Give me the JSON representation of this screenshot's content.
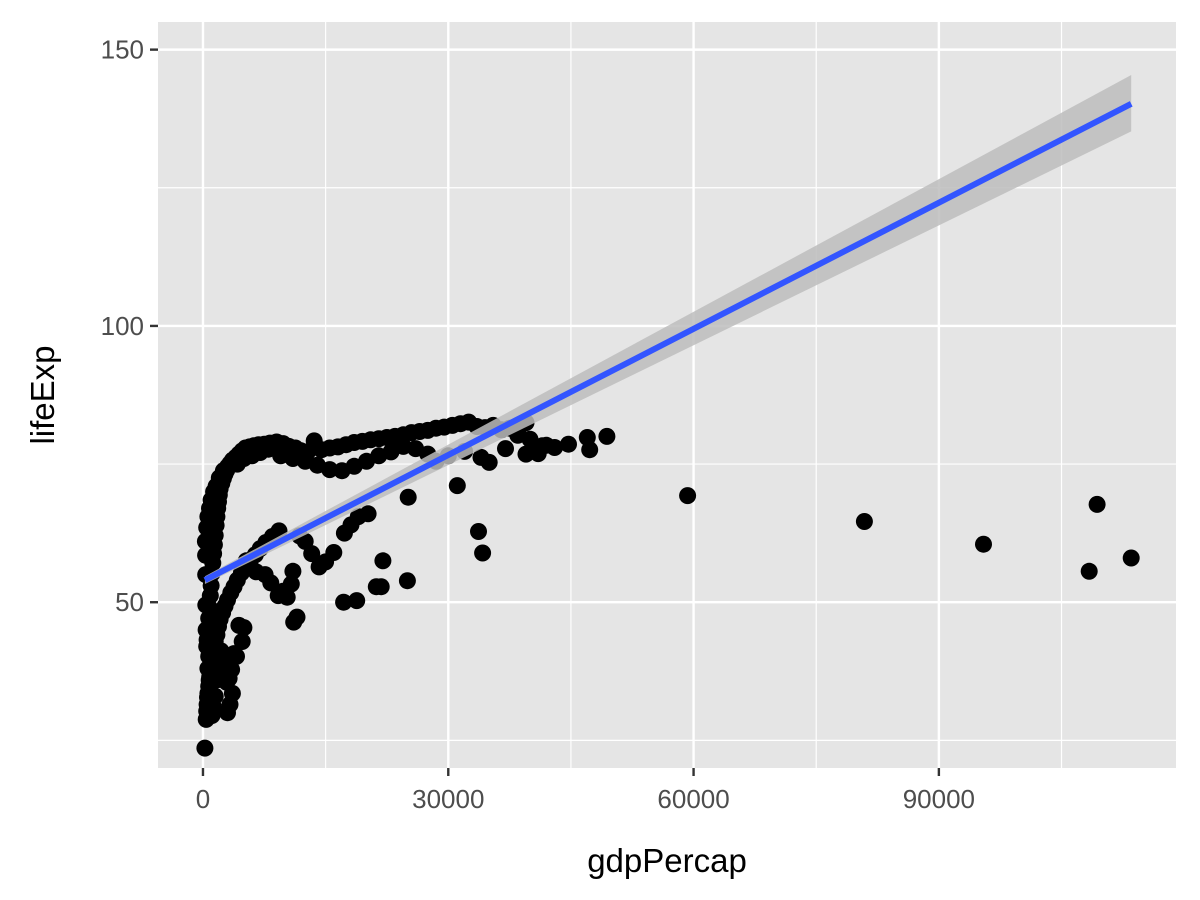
{
  "chart_data": {
    "type": "scatter",
    "title": "",
    "xlabel": "gdpPercap",
    "ylabel": "lifeExp",
    "xlim": [
      -5500,
      119000
    ],
    "ylim": [
      20,
      155
    ],
    "x_ticks": [
      0,
      30000,
      60000,
      90000
    ],
    "x_tick_labels": [
      "0",
      "30000",
      "60000",
      "90000"
    ],
    "y_ticks": [
      50,
      100,
      150
    ],
    "y_tick_labels": [
      "50",
      "100",
      "150"
    ],
    "grid": true,
    "legend": "none",
    "colors": {
      "panel": "#e5e5e5",
      "grid": "#ffffff",
      "points": "#000000",
      "fit_line": "#3355ff",
      "ribbon": "#bdbdbd"
    },
    "fit": {
      "method": "lm",
      "x": [
        241,
        113523
      ],
      "y": [
        54.0,
        140.2
      ],
      "ci_lower": [
        53.3,
        135.2
      ],
      "ci_upper": [
        54.7,
        145.4
      ]
    },
    "points": [
      [
        241,
        23.6
      ],
      [
        400,
        28.8
      ],
      [
        450,
        30.3
      ],
      [
        500,
        31.5
      ],
      [
        550,
        32.8
      ],
      [
        600,
        33.5
      ],
      [
        700,
        34.8
      ],
      [
        760,
        35.9
      ],
      [
        820,
        36.5
      ],
      [
        900,
        37.6
      ],
      [
        1000,
        38.4
      ],
      [
        1100,
        39.4
      ],
      [
        1200,
        40.8
      ],
      [
        1350,
        41.9
      ],
      [
        1500,
        42.9
      ],
      [
        1700,
        44.1
      ],
      [
        1900,
        45.6
      ],
      [
        2100,
        46.9
      ],
      [
        2400,
        48.1
      ],
      [
        2700,
        49.3
      ],
      [
        3000,
        50.4
      ],
      [
        3400,
        51.7
      ],
      [
        3800,
        52.8
      ],
      [
        4200,
        54.0
      ],
      [
        4700,
        55.3
      ],
      [
        5200,
        56.5
      ],
      [
        5800,
        57.6
      ],
      [
        6400,
        58.6
      ],
      [
        7000,
        59.7
      ],
      [
        7700,
        60.8
      ],
      [
        8500,
        61.9
      ],
      [
        9300,
        62.9
      ],
      [
        500,
        43.2
      ],
      [
        600,
        45.0
      ],
      [
        700,
        47.1
      ],
      [
        800,
        49.0
      ],
      [
        900,
        51.2
      ],
      [
        1000,
        53.0
      ],
      [
        1100,
        55.2
      ],
      [
        1200,
        57.1
      ],
      [
        1300,
        58.8
      ],
      [
        1400,
        60.4
      ],
      [
        1500,
        62.1
      ],
      [
        1600,
        63.9
      ],
      [
        1700,
        65.5
      ],
      [
        1800,
        67.0
      ],
      [
        1900,
        68.2
      ],
      [
        2000,
        69.4
      ],
      [
        2100,
        70.5
      ],
      [
        2300,
        71.5
      ],
      [
        2500,
        72.4
      ],
      [
        2700,
        73.2
      ],
      [
        2900,
        73.9
      ],
      [
        3100,
        74.5
      ],
      [
        3300,
        75.1
      ],
      [
        3600,
        75.7
      ],
      [
        4000,
        76.2
      ],
      [
        4400,
        76.8
      ],
      [
        4800,
        77.4
      ],
      [
        5200,
        77.9
      ],
      [
        5700,
        78.1
      ],
      [
        6200,
        78.3
      ],
      [
        6800,
        78.5
      ],
      [
        7500,
        78.6
      ],
      [
        8200,
        78.8
      ],
      [
        9000,
        79.0
      ],
      [
        9800,
        78.7
      ],
      [
        10500,
        78.2
      ],
      [
        11300,
        77.9
      ],
      [
        12000,
        77.4
      ],
      [
        12800,
        77.2
      ],
      [
        13600,
        79.2
      ],
      [
        14500,
        77.6
      ],
      [
        15500,
        77.9
      ],
      [
        16500,
        78.1
      ],
      [
        17500,
        78.5
      ],
      [
        18500,
        78.9
      ],
      [
        19500,
        79.1
      ],
      [
        20500,
        79.4
      ],
      [
        21500,
        79.6
      ],
      [
        22500,
        79.8
      ],
      [
        23500,
        80.0
      ],
      [
        24500,
        80.3
      ],
      [
        25500,
        80.7
      ],
      [
        26500,
        80.9
      ],
      [
        27500,
        81.1
      ],
      [
        28500,
        81.5
      ],
      [
        29500,
        81.7
      ],
      [
        30500,
        82.0
      ],
      [
        31500,
        82.3
      ],
      [
        32500,
        82.6
      ],
      [
        33500,
        81.8
      ],
      [
        34500,
        81.6
      ],
      [
        35500,
        82.0
      ],
      [
        36500,
        81.2
      ],
      [
        37500,
        81.5
      ],
      [
        38500,
        81.0
      ],
      [
        39500,
        82.5
      ],
      [
        40000,
        79.5
      ],
      [
        40500,
        77.4
      ],
      [
        41500,
        78.3
      ],
      [
        43000,
        78.0
      ],
      [
        44700,
        78.6
      ],
      [
        47000,
        79.8
      ],
      [
        47300,
        77.6
      ],
      [
        49400,
        80.0
      ],
      [
        59265,
        69.3
      ],
      [
        80894,
        64.6
      ],
      [
        95458,
        60.5
      ],
      [
        108382,
        55.6
      ],
      [
        109348,
        67.7
      ],
      [
        113523,
        58.0
      ],
      [
        33700,
        62.8
      ],
      [
        34200,
        58.9
      ],
      [
        31100,
        71.1
      ],
      [
        25100,
        69.0
      ],
      [
        25000,
        53.9
      ],
      [
        22000,
        57.5
      ],
      [
        21800,
        52.8
      ],
      [
        21200,
        52.8
      ],
      [
        18800,
        50.3
      ],
      [
        17200,
        50.0
      ],
      [
        20200,
        66.0
      ],
      [
        19000,
        65.5
      ],
      [
        18100,
        64.0
      ],
      [
        17300,
        62.5
      ],
      [
        16000,
        59.0
      ],
      [
        15000,
        57.3
      ],
      [
        14200,
        56.4
      ],
      [
        13300,
        58.8
      ],
      [
        12500,
        61.0
      ],
      [
        11800,
        62.0
      ],
      [
        11500,
        47.3
      ],
      [
        11100,
        46.4
      ],
      [
        10300,
        50.9
      ],
      [
        10800,
        53.3
      ],
      [
        11000,
        55.6
      ],
      [
        9800,
        52.0
      ],
      [
        9200,
        51.2
      ],
      [
        8300,
        53.5
      ],
      [
        7600,
        55.0
      ],
      [
        6500,
        55.5
      ],
      [
        5300,
        57.5
      ],
      [
        5000,
        45.4
      ],
      [
        4800,
        42.9
      ],
      [
        4400,
        45.8
      ],
      [
        4100,
        40.2
      ],
      [
        3800,
        40.7
      ],
      [
        3500,
        37.8
      ],
      [
        3200,
        36.2
      ],
      [
        3000,
        30.0
      ],
      [
        3300,
        31.5
      ],
      [
        3600,
        33.5
      ],
      [
        2900,
        35.5
      ],
      [
        2600,
        38.6
      ],
      [
        2200,
        41.2
      ],
      [
        2000,
        38.0
      ],
      [
        1800,
        36.0
      ],
      [
        1500,
        33.0
      ],
      [
        1300,
        31.0
      ],
      [
        1100,
        29.5
      ],
      [
        900,
        35.0
      ],
      [
        700,
        40.2
      ],
      [
        600,
        38.0
      ],
      [
        450,
        42.0
      ],
      [
        380,
        45.0
      ],
      [
        350,
        49.5
      ],
      [
        330,
        55.0
      ],
      [
        320,
        58.5
      ],
      [
        300,
        61.0
      ],
      [
        450,
        63.5
      ],
      [
        600,
        65.5
      ],
      [
        800,
        67.0
      ],
      [
        1000,
        68.5
      ],
      [
        1300,
        70.0
      ],
      [
        1600,
        71.0
      ],
      [
        2000,
        72.5
      ],
      [
        2500,
        73.8
      ],
      [
        3000,
        74.5
      ],
      [
        3500,
        75.2
      ],
      [
        4200,
        75.0
      ],
      [
        5000,
        76.0
      ],
      [
        6000,
        76.5
      ],
      [
        7000,
        77.1
      ],
      [
        8000,
        77.7
      ],
      [
        9500,
        76.5
      ],
      [
        11000,
        76.0
      ],
      [
        12500,
        75.5
      ],
      [
        14000,
        74.8
      ],
      [
        15500,
        74.0
      ],
      [
        17000,
        73.8
      ],
      [
        18500,
        74.6
      ],
      [
        20000,
        75.5
      ],
      [
        21500,
        76.5
      ],
      [
        23000,
        77.2
      ],
      [
        24500,
        78.2
      ],
      [
        26000,
        77.8
      ],
      [
        27500,
        76.8
      ],
      [
        28500,
        75.5
      ],
      [
        30000,
        76.5
      ],
      [
        32000,
        77.3
      ],
      [
        34000,
        76.2
      ],
      [
        35000,
        75.3
      ],
      [
        37000,
        77.8
      ],
      [
        38500,
        80.2
      ],
      [
        39500,
        76.8
      ],
      [
        41000,
        76.9
      ],
      [
        42000,
        78.4
      ]
    ]
  }
}
